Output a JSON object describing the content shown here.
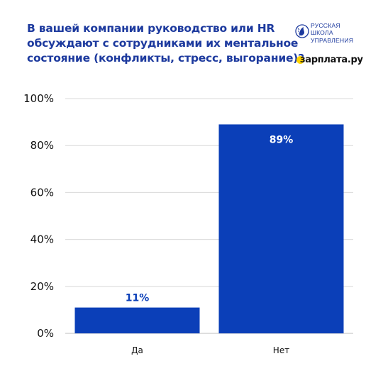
{
  "header": {
    "title_lines": [
      "В вашей компании руководство или HR",
      "обсуждают с сотрудниками их ментальное",
      "состояние (конфликты, стресс, выгорание)?"
    ]
  },
  "logos": {
    "rsu": {
      "lines": [
        "РУССКАЯ",
        "ШКОЛА",
        "УПРАВЛЕНИЯ"
      ],
      "icon": "rsu-emblem-icon"
    },
    "zarplata": {
      "text": "зарплата.ру",
      "icon": "yellow-dot-icon"
    }
  },
  "colors": {
    "bar": "#0b3fb8",
    "title": "#1d3a9e",
    "label_outside": "#0b3fb8",
    "label_inside": "#ffffff",
    "grid": "#d9d9d9",
    "accent_yellow": "#ffd400"
  },
  "chart_data": {
    "type": "bar",
    "categories": [
      "Да",
      "Нет"
    ],
    "values": [
      11,
      89
    ],
    "data_labels": [
      "11%",
      "89%"
    ],
    "y_ticks": [
      "0%",
      "20%",
      "40%",
      "60%",
      "80%",
      "100%"
    ],
    "ylim": [
      0,
      100
    ],
    "xlabel": "",
    "ylabel": "",
    "grid": true
  }
}
